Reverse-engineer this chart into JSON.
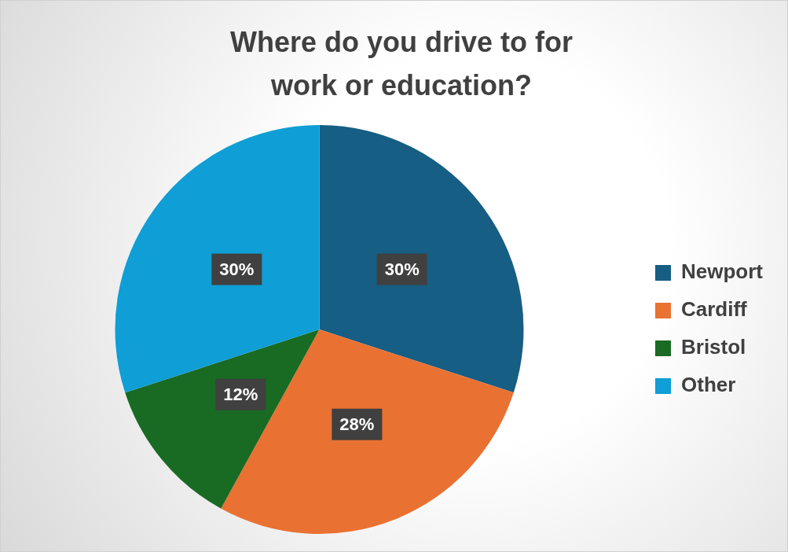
{
  "chart_data": {
    "type": "pie",
    "title": "Where do you drive to for work or education?",
    "categories": [
      "Newport",
      "Cardiff",
      "Bristol",
      "Other"
    ],
    "values": [
      30,
      28,
      12,
      30
    ],
    "colors": [
      "#165e83",
      "#e97132",
      "#196b24",
      "#0f9ed5"
    ],
    "value_labels": [
      "30%",
      "28%",
      "12%",
      "30%"
    ],
    "legend": "right"
  }
}
